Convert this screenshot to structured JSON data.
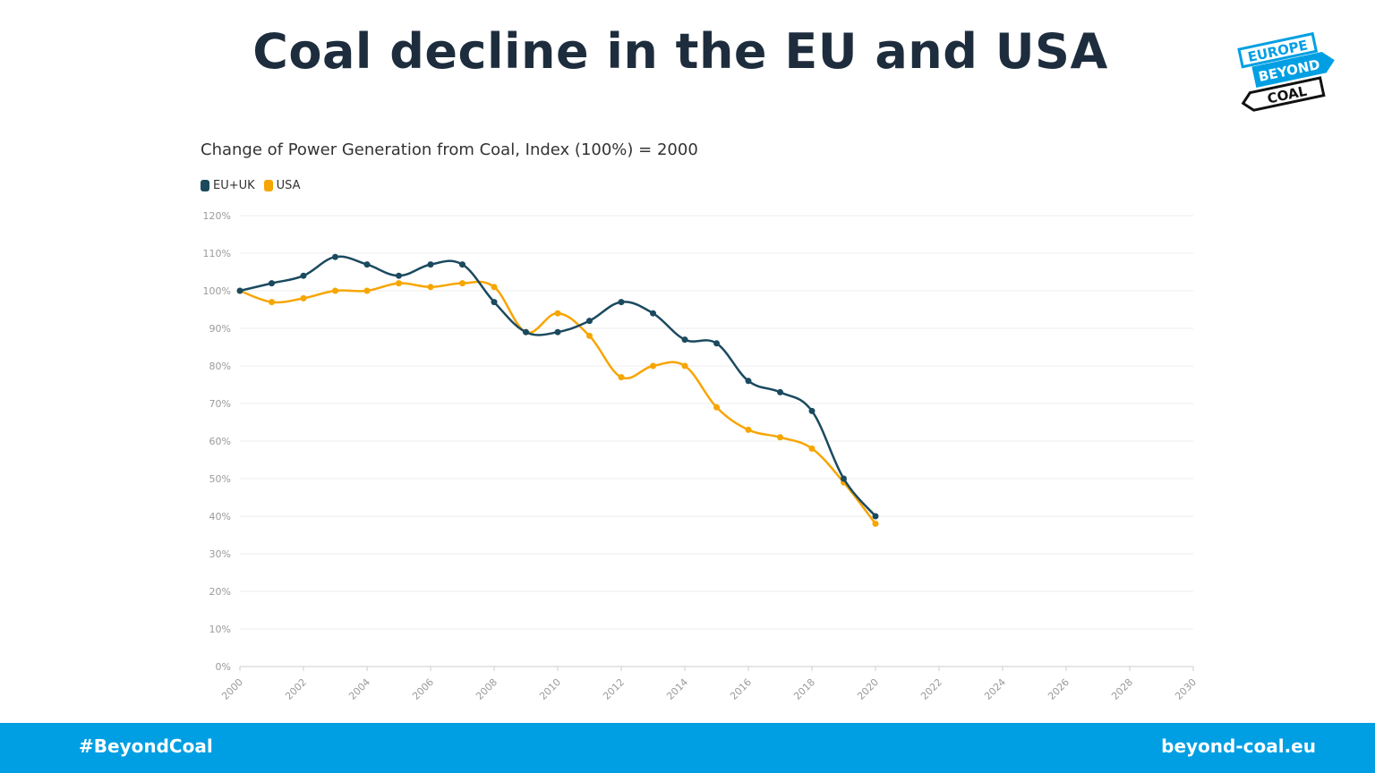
{
  "header": {
    "title": "Coal decline in the EU and USA",
    "logo_text": [
      "EUROPE",
      "BEYOND",
      "COAL"
    ]
  },
  "footer": {
    "hashtag": "#BeyondCoal",
    "website": "beyond-coal.eu"
  },
  "colors": {
    "eu": "#1b4a5f",
    "usa": "#f7a500",
    "footer": "#009fe3",
    "title": "#1e2d3d"
  },
  "chart_data": {
    "type": "line",
    "title": "Change of Power Generation from Coal, Index (100%) = 2000",
    "xlabel": "",
    "ylabel": "",
    "xlim": [
      2000,
      2030
    ],
    "ylim": [
      0,
      120
    ],
    "grid": true,
    "legend": "top-left",
    "x_ticks": [
      "2000",
      "2002",
      "2004",
      "2006",
      "2008",
      "2010",
      "2012",
      "2014",
      "2016",
      "2018",
      "2020",
      "2022",
      "2024",
      "2026",
      "2028",
      "2030"
    ],
    "y_ticks": [
      "0%",
      "10%",
      "20%",
      "30%",
      "40%",
      "50%",
      "60%",
      "70%",
      "80%",
      "90%",
      "100%",
      "110%",
      "120%"
    ],
    "series": [
      {
        "name": "EU+UK",
        "color": "#1b4a5f",
        "x": [
          2000,
          2001,
          2002,
          2003,
          2004,
          2005,
          2006,
          2007,
          2008,
          2009,
          2010,
          2011,
          2012,
          2013,
          2014,
          2015,
          2016,
          2017,
          2018,
          2019,
          2020
        ],
        "values": [
          100,
          102,
          104,
          109,
          107,
          104,
          107,
          107,
          97,
          89,
          89,
          92,
          97,
          94,
          87,
          86,
          76,
          73,
          68,
          50,
          40
        ]
      },
      {
        "name": "USA",
        "color": "#f7a500",
        "x": [
          2000,
          2001,
          2002,
          2003,
          2004,
          2005,
          2006,
          2007,
          2008,
          2009,
          2010,
          2011,
          2012,
          2013,
          2014,
          2015,
          2016,
          2017,
          2018,
          2019,
          2020
        ],
        "values": [
          100,
          97,
          98,
          100,
          100,
          102,
          101,
          102,
          101,
          89,
          94,
          88,
          77,
          80,
          80,
          69,
          63,
          61,
          58,
          49,
          38
        ]
      }
    ]
  }
}
